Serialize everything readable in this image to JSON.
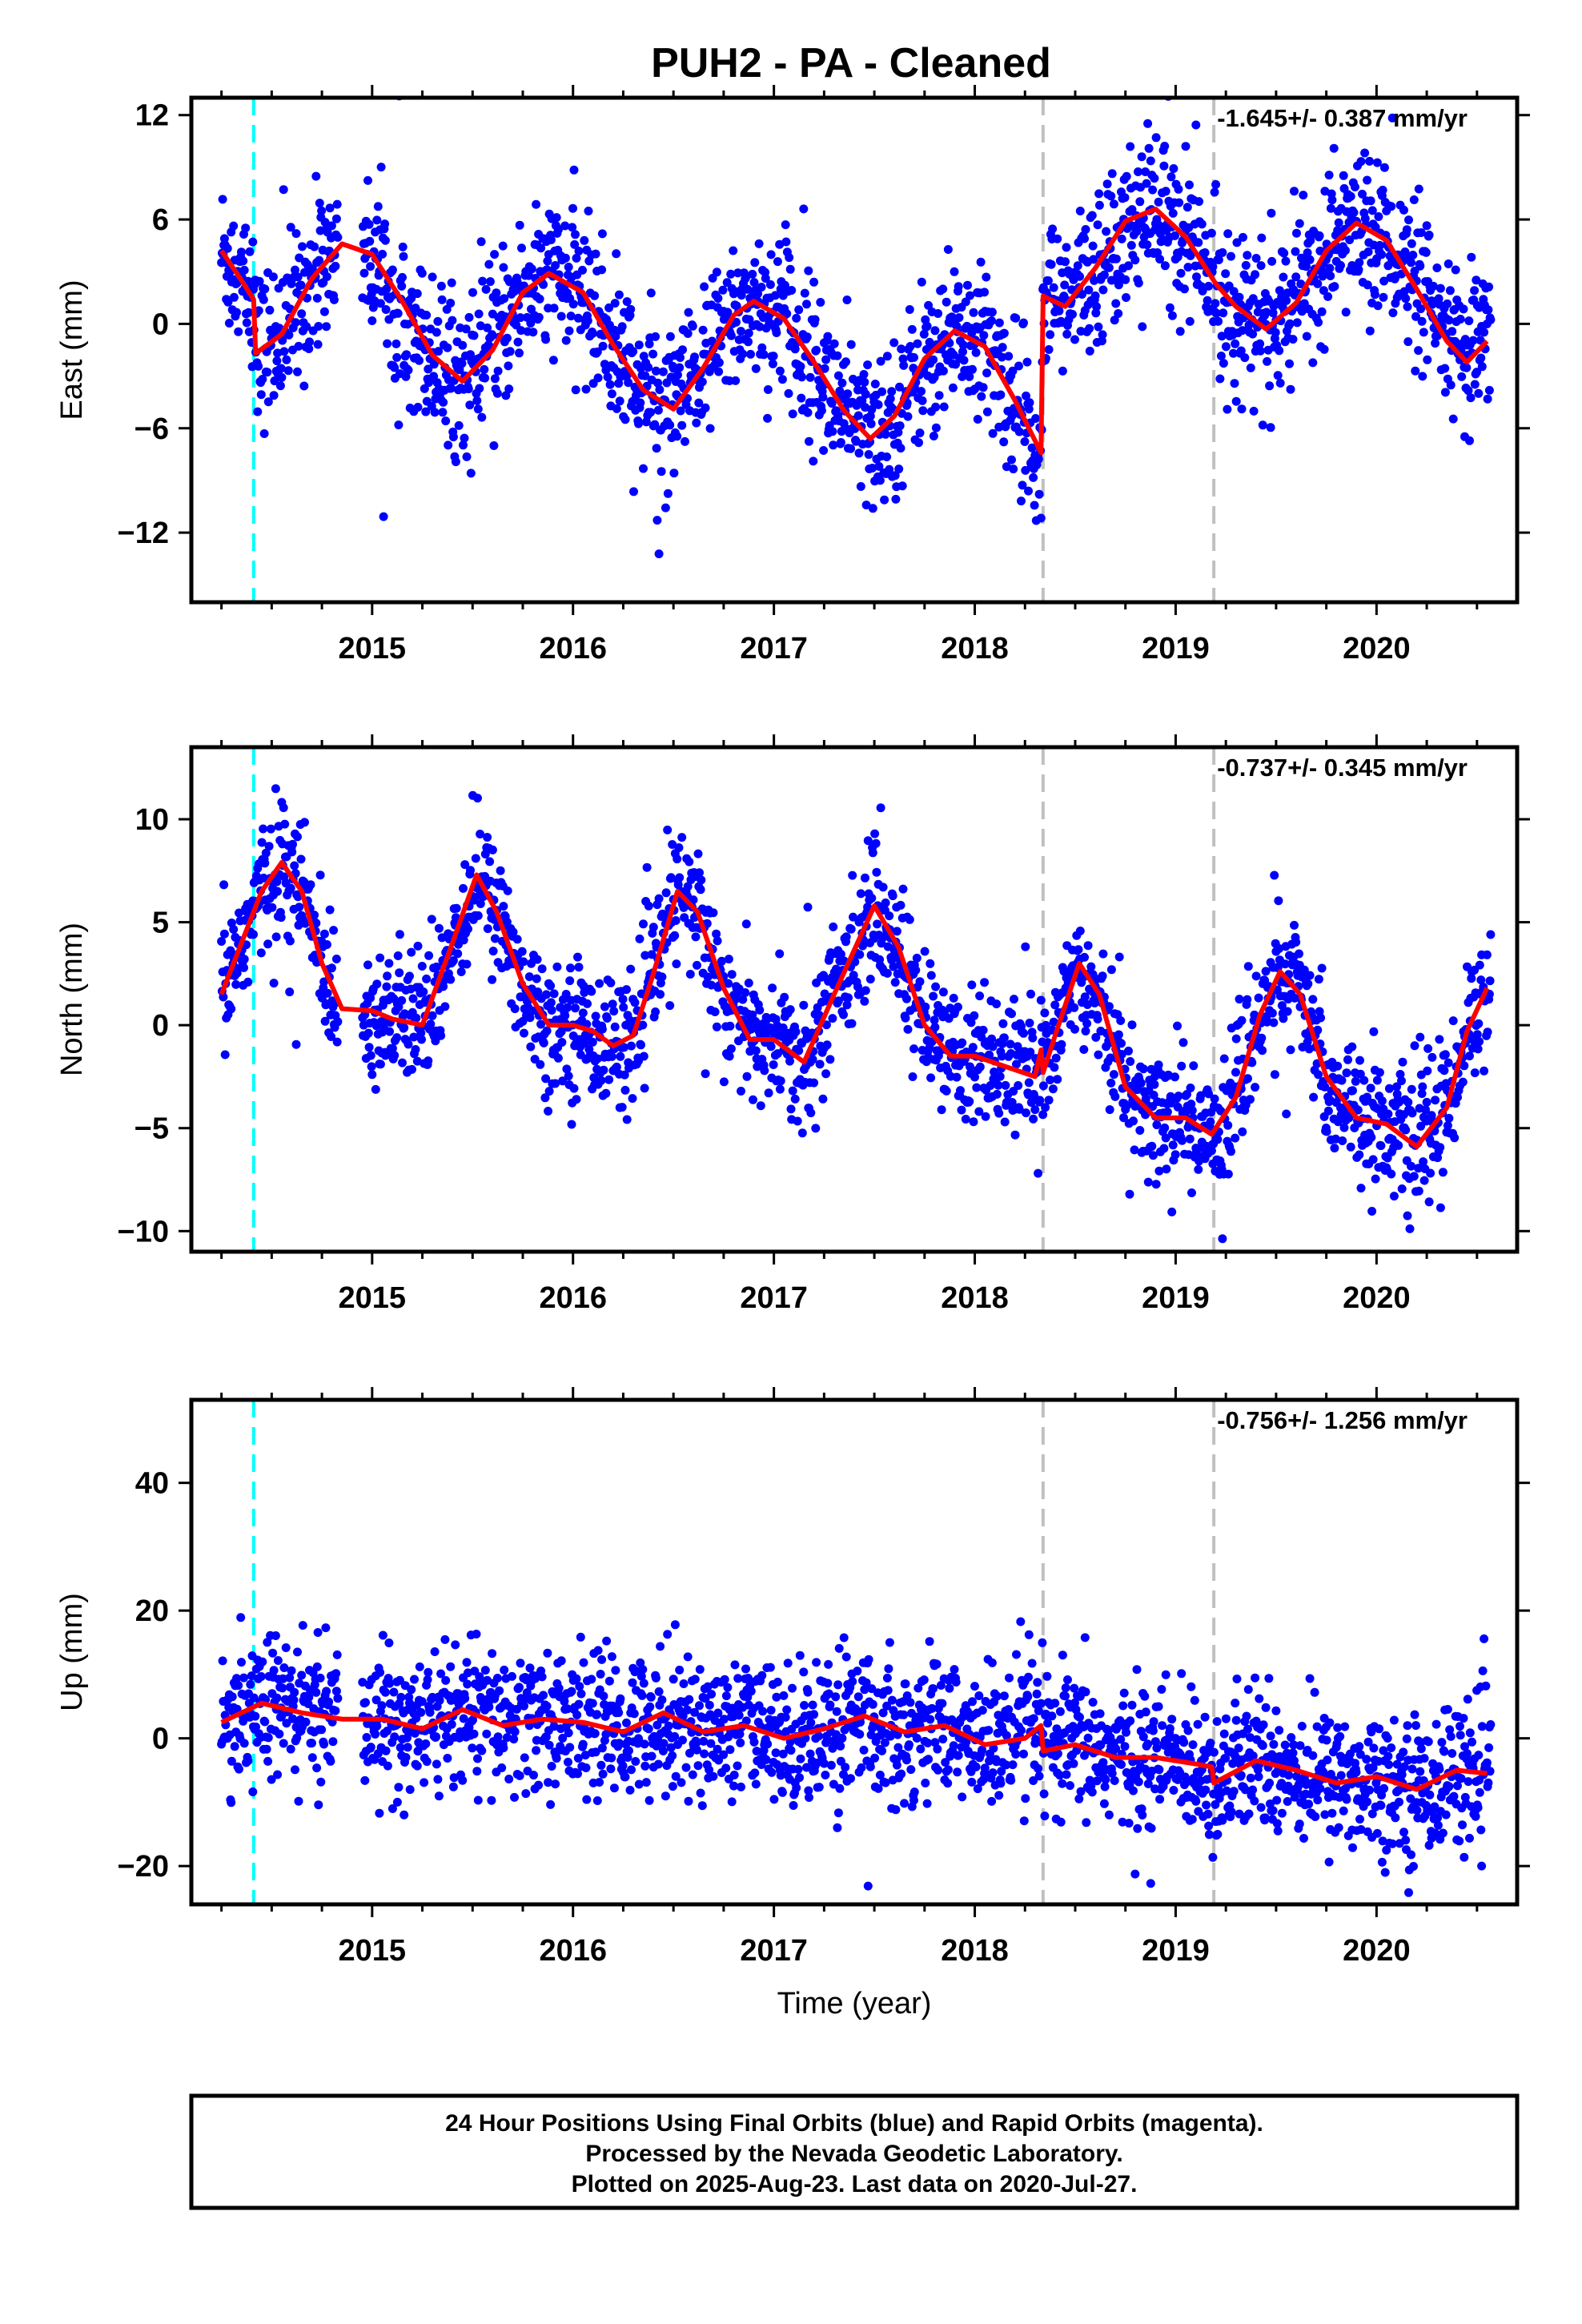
{
  "title": "PUH2  - PA - Cleaned",
  "colors": {
    "final_points": "#0000ff",
    "model": "#ff0000",
    "equipment_change": "#00ffff",
    "other_event": "#c0c0c0"
  },
  "footer": {
    "line1": "24 Hour Positions Using Final Orbits (blue) and Rapid Orbits (magenta).",
    "line2": "Processed by the Nevada Geodetic Laboratory.",
    "line3": "Plotted on 2025-Aug-23. Last data on 2020-Jul-27."
  },
  "chart_data": [
    {
      "type": "scatter",
      "panel": "east",
      "ylabel": "East (mm)",
      "xlabel": "",
      "rate_text": "-1.645+/- 0.387 mm/yr",
      "xlim": [
        2014.1,
        2020.7
      ],
      "ylim": [
        -16,
        13
      ],
      "xticks": [
        2015,
        2016,
        2017,
        2018,
        2019,
        2020
      ],
      "yticks": [
        12,
        6,
        0,
        -6,
        -12
      ],
      "ytick_labels": [
        "12",
        "6",
        "0",
        "−6",
        "−12"
      ],
      "grid": false,
      "event_lines": [
        {
          "x": 2014.41,
          "kind": "equipment_change"
        },
        {
          "x": 2018.34,
          "kind": "other_event"
        },
        {
          "x": 2019.19,
          "kind": "other_event"
        }
      ],
      "model": {
        "name": "model",
        "x": [
          2014.25,
          2014.35,
          2014.41,
          2014.42,
          2014.55,
          2014.7,
          2014.85,
          2015.0,
          2015.15,
          2015.3,
          2015.45,
          2015.6,
          2015.75,
          2015.88,
          2016.05,
          2016.2,
          2016.35,
          2016.5,
          2016.65,
          2016.8,
          2016.9,
          2017.05,
          2017.2,
          2017.35,
          2017.48,
          2017.6,
          2017.75,
          2017.9,
          2018.05,
          2018.2,
          2018.33,
          2018.34,
          2018.45,
          2018.6,
          2018.75,
          2018.9,
          2019.05,
          2019.2,
          2019.3,
          2019.45,
          2019.6,
          2019.75,
          2019.9,
          2020.05,
          2020.2,
          2020.35,
          2020.45,
          2020.55
        ],
        "y": [
          4.2,
          2.5,
          1.4,
          -1.7,
          -0.6,
          2.6,
          4.6,
          4.0,
          1.3,
          -1.8,
          -3.3,
          -1.5,
          1.8,
          2.9,
          1.8,
          -1.2,
          -3.8,
          -4.9,
          -2.5,
          0.5,
          1.3,
          0.3,
          -2.2,
          -5.0,
          -6.6,
          -5.3,
          -2.0,
          -0.4,
          -1.3,
          -4.4,
          -7.4,
          1.6,
          1.0,
          3.2,
          5.9,
          6.6,
          5.0,
          2.3,
          1.0,
          -0.3,
          1.2,
          4.2,
          5.8,
          4.8,
          2.0,
          -1.0,
          -2.2,
          -1.0
        ]
      },
      "scatter_model": {
        "_comment": "Daily position solutions (blue dots, ~2000 points) fluctuate around the model with the spreads listed here.",
        "start": 2014.25,
        "end": 2020.57,
        "step": 0.003,
        "spread": 2.2,
        "gap": [
          2014.83,
          2014.95
        ]
      }
    },
    {
      "type": "scatter",
      "panel": "north",
      "ylabel": "North (mm)",
      "xlabel": "",
      "rate_text": "-0.737+/- 0.345 mm/yr",
      "xlim": [
        2014.1,
        2020.7
      ],
      "ylim": [
        -11,
        13.5
      ],
      "xticks": [
        2015,
        2016,
        2017,
        2018,
        2019,
        2020
      ],
      "yticks": [
        10,
        5,
        0,
        -5,
        -10
      ],
      "ytick_labels": [
        "10",
        "5",
        "0",
        "−5",
        "−10"
      ],
      "grid": false,
      "event_lines": [
        {
          "x": 2014.41,
          "kind": "equipment_change"
        },
        {
          "x": 2018.34,
          "kind": "other_event"
        },
        {
          "x": 2019.19,
          "kind": "other_event"
        }
      ],
      "model": {
        "name": "model",
        "x": [
          2014.25,
          2014.35,
          2014.45,
          2014.55,
          2014.65,
          2014.75,
          2014.85,
          2015.0,
          2015.1,
          2015.25,
          2015.4,
          2015.52,
          2015.62,
          2015.75,
          2015.88,
          2016.0,
          2016.1,
          2016.2,
          2016.3,
          2016.4,
          2016.52,
          2016.62,
          2016.75,
          2016.88,
          2017.0,
          2017.15,
          2017.3,
          2017.5,
          2017.62,
          2017.75,
          2017.88,
          2018.0,
          2018.15,
          2018.3,
          2018.33,
          2018.34,
          2018.4,
          2018.52,
          2018.62,
          2018.75,
          2018.9,
          2019.05,
          2019.18,
          2019.3,
          2019.42,
          2019.52,
          2019.62,
          2019.75,
          2019.9,
          2020.05,
          2020.2,
          2020.35,
          2020.45,
          2020.55
        ],
        "y": [
          1.5,
          4.0,
          6.5,
          7.9,
          6.5,
          3.0,
          0.8,
          0.7,
          0.3,
          0.0,
          4.0,
          7.3,
          5.5,
          2.0,
          0.0,
          0.0,
          -0.3,
          -1.0,
          -0.5,
          2.5,
          6.5,
          5.5,
          1.8,
          -0.7,
          -0.7,
          -1.8,
          1.5,
          5.8,
          3.8,
          0.0,
          -1.5,
          -1.5,
          -2.0,
          -2.5,
          -1.2,
          -2.3,
          -0.5,
          3.0,
          1.5,
          -3.0,
          -4.5,
          -4.5,
          -5.3,
          -3.5,
          0.5,
          2.6,
          1.5,
          -2.5,
          -4.5,
          -4.8,
          -5.9,
          -4.0,
          -0.3,
          1.8
        ]
      },
      "scatter_model": {
        "_comment": "Daily position solutions (blue dots) around the model.",
        "start": 2014.25,
        "end": 2020.57,
        "step": 0.003,
        "spread": 1.6,
        "gap": [
          2014.83,
          2014.95
        ]
      }
    },
    {
      "type": "scatter",
      "panel": "up",
      "ylabel": "Up (mm)",
      "xlabel": "Time (year)",
      "rate_text": "-0.756+/- 1.256 mm/yr",
      "xlim": [
        2014.1,
        2020.7
      ],
      "ylim": [
        -26,
        53
      ],
      "xticks": [
        2015,
        2016,
        2017,
        2018,
        2019,
        2020
      ],
      "yticks": [
        40,
        20,
        0,
        -20
      ],
      "ytick_labels": [
        "40",
        "20",
        "0",
        "−20"
      ],
      "grid": false,
      "event_lines": [
        {
          "x": 2014.41,
          "kind": "equipment_change"
        },
        {
          "x": 2018.34,
          "kind": "other_event"
        },
        {
          "x": 2019.19,
          "kind": "other_event"
        }
      ],
      "model": {
        "name": "model",
        "x": [
          2014.25,
          2014.45,
          2014.65,
          2014.85,
          2015.05,
          2015.25,
          2015.45,
          2015.65,
          2015.85,
          2016.05,
          2016.25,
          2016.45,
          2016.65,
          2016.85,
          2017.05,
          2017.25,
          2017.45,
          2017.65,
          2017.85,
          2018.05,
          2018.25,
          2018.33,
          2018.34,
          2018.5,
          2018.7,
          2018.9,
          2019.1,
          2019.18,
          2019.19,
          2019.4,
          2019.6,
          2019.8,
          2020.0,
          2020.2,
          2020.4,
          2020.55
        ],
        "y": [
          2.5,
          5.5,
          4.0,
          3.0,
          3.0,
          1.5,
          4.5,
          2.0,
          3.0,
          2.5,
          1.0,
          4.0,
          1.0,
          2.0,
          0.0,
          1.5,
          3.5,
          1.0,
          2.0,
          -1.0,
          0.0,
          2.0,
          -2.0,
          -1.0,
          -3.0,
          -3.0,
          -4.0,
          -4.5,
          -7.0,
          -3.5,
          -5.0,
          -7.0,
          -6.0,
          -8.0,
          -5.0,
          -5.5
        ]
      },
      "scatter_model": {
        "_comment": "Daily position solutions (blue dots) around the model.",
        "start": 2014.25,
        "end": 2020.57,
        "step": 0.003,
        "spread": 5.5,
        "gap": [
          2014.83,
          2014.95
        ]
      }
    }
  ]
}
